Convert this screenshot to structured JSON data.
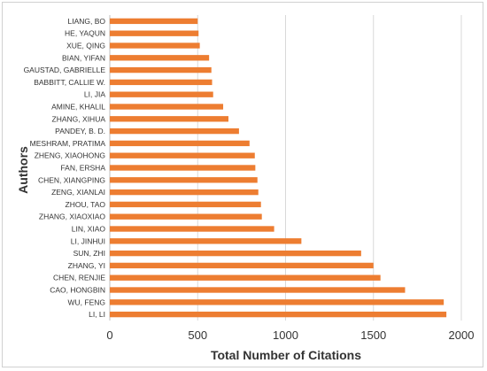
{
  "chart_data": {
    "type": "bar",
    "orientation": "horizontal",
    "title": "",
    "xlabel": "Total Number of Citations",
    "ylabel": "Authors",
    "xlim": [
      0,
      2000
    ],
    "xticks": [
      0,
      500,
      1000,
      1500,
      2000
    ],
    "grid": "vertical",
    "legend": "none",
    "bar_color": "#ED7D31",
    "categories": [
      "LIANG, BO",
      "HE, YAQUN",
      "XUE, QING",
      "BIAN, YIFAN",
      "GAUSTAD, GABRIELLE",
      "BABBITT, CALLIE W.",
      "LI, JIA",
      "AMINE, KHALIL",
      "ZHANG, XIHUA",
      "PANDEY, B. D.",
      "MESHRAM, PRATIMA",
      "ZHENG, XIAOHONG",
      "FAN, ERSHA",
      "CHEN, XIANGPING",
      "ZENG, XIANLAI",
      "ZHOU, TAO",
      "ZHANG, XIAOXIAO",
      "LIN, XIAO",
      "LI, JINHUI",
      "SUN, ZHI",
      "ZHANG, YI",
      "CHEN, RENJIE",
      "CAO, HONGBIN",
      "WU, FENG",
      "LI, LI"
    ],
    "values": [
      500,
      505,
      512,
      565,
      578,
      582,
      588,
      645,
      675,
      735,
      795,
      825,
      828,
      840,
      845,
      860,
      865,
      935,
      1090,
      1430,
      1500,
      1540,
      1680,
      1900,
      1915
    ]
  }
}
